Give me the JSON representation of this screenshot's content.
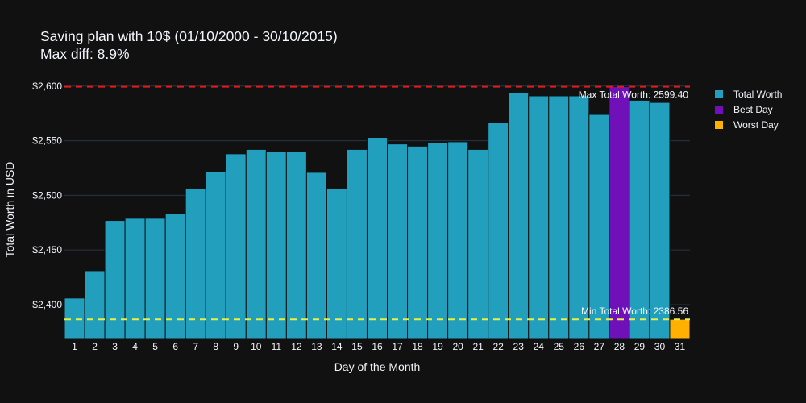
{
  "title": {
    "line1": "Saving plan with 10$ (01/10/2000 - 30/10/2015)",
    "line2": "Max diff: 8.9%"
  },
  "legend": {
    "items": [
      {
        "label": "Total Worth",
        "color": "#219fbd"
      },
      {
        "label": "Best Day",
        "color": "#7010b8"
      },
      {
        "label": "Worst Day",
        "color": "#ffb000"
      }
    ]
  },
  "colors": {
    "background": "#111111",
    "grid": "#283442",
    "text": "#f2f5fa",
    "bar": "#219fbd",
    "best": "#7010b8",
    "worst": "#ffb000",
    "max_line": "#e31a1c",
    "min_line": "#e8f046"
  },
  "chart_data": {
    "type": "bar",
    "xlabel": "Day of the Month",
    "ylabel": "Total Worth in USD",
    "ylim": [
      2369,
      2605
    ],
    "yticks": [
      2400,
      2450,
      2500,
      2550,
      2600
    ],
    "ytick_labels": [
      "$2,400",
      "$2,450",
      "$2,500",
      "$2,550",
      "$2,600"
    ],
    "grid": true,
    "legend_position": "right",
    "categories": [
      "1",
      "2",
      "3",
      "4",
      "5",
      "6",
      "7",
      "8",
      "9",
      "10",
      "11",
      "12",
      "13",
      "14",
      "15",
      "16",
      "17",
      "18",
      "19",
      "20",
      "21",
      "22",
      "23",
      "24",
      "25",
      "26",
      "27",
      "28",
      "29",
      "30",
      "31"
    ],
    "series": [
      {
        "name": "Total Worth",
        "values": [
          2406,
          2431,
          2477,
          2479,
          2479,
          2483,
          2506,
          2522,
          2538,
          2542,
          2540,
          2540,
          2521,
          2506,
          2542,
          2553,
          2547,
          2545,
          2548,
          2549,
          2542,
          2567,
          2594,
          2591,
          2591,
          2591,
          2574,
          2599.4,
          2587,
          2585,
          2386.56
        ]
      }
    ],
    "best_day": "28",
    "worst_day": "31",
    "max_line": {
      "value": 2599.4,
      "label": "Max Total Worth: 2599.40"
    },
    "min_line": {
      "value": 2386.56,
      "label": "Min Total Worth: 2386.56"
    }
  }
}
